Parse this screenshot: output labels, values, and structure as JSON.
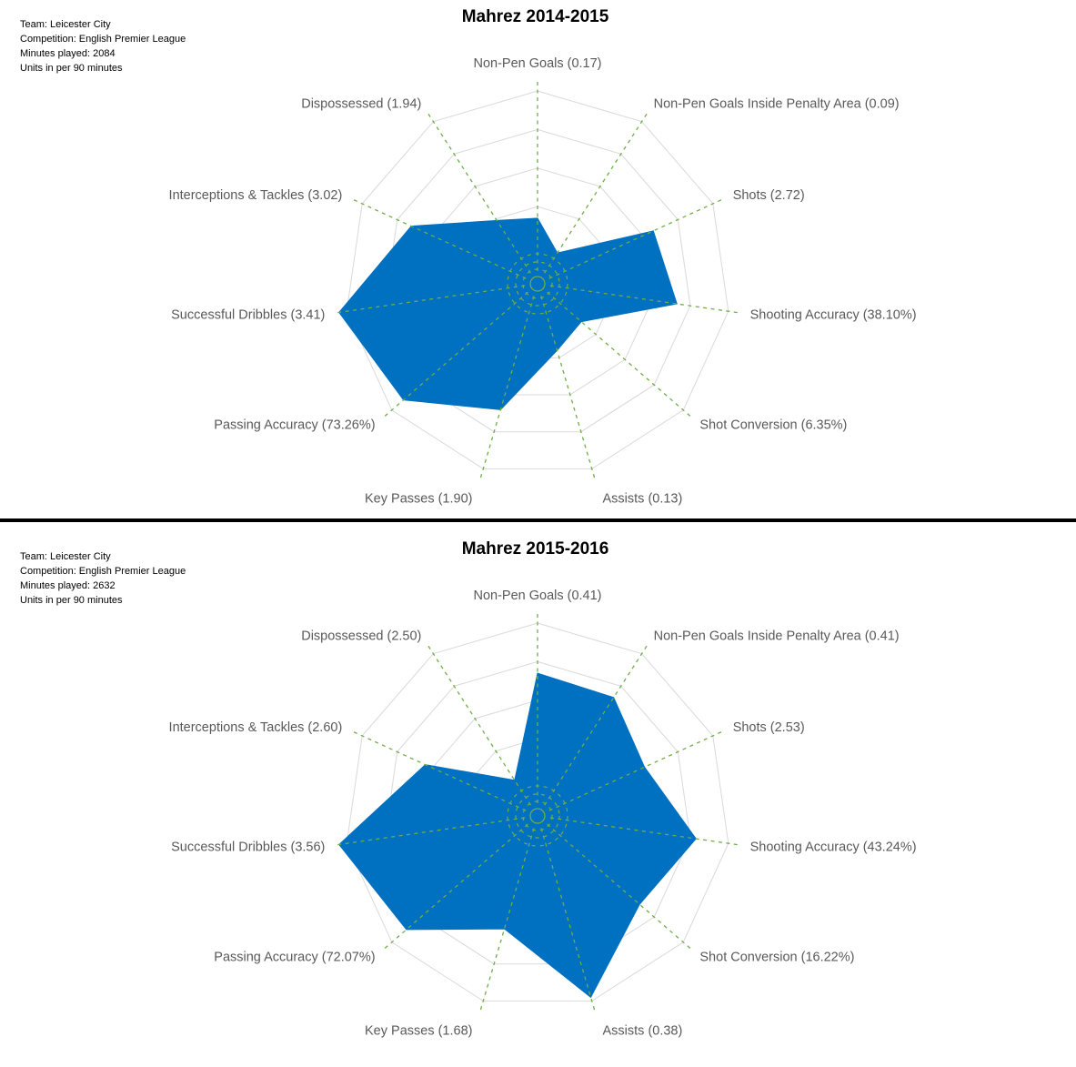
{
  "charts": [
    {
      "title": "Mahrez 2014-2015",
      "info": {
        "team": "Team: Leicester City",
        "competition": "Competition: English Premier League",
        "minutes": "Minutes played: 2084",
        "units": "Units in per 90 minutes"
      }
    },
    {
      "title": "Mahrez 2015-2016",
      "info": {
        "team": "Team: Leicester City",
        "competition": "Competition: English Premier League",
        "minutes": "Minutes played: 2632",
        "units": "Units in per 90 minutes"
      }
    }
  ],
  "colors": {
    "fill": "#0070C0",
    "grid": "#D9D9D9",
    "axis": "#70AD47",
    "label": "#595959"
  },
  "chart_data": [
    {
      "type": "radar",
      "title": "Mahrez 2014-2015",
      "categories": [
        "Non-Pen Goals",
        "Non-Pen Goals Inside Penalty Area",
        "Shots",
        "Shooting Accuracy",
        "Shot Conversion",
        "Assists",
        "Key Passes",
        "Passing Accuracy",
        "Successful Dribbles",
        "Interceptions & Tackles",
        "Dispossessed"
      ],
      "labels": [
        "Non-Pen Goals (0.17)",
        "Non-Pen Goals Inside Penalty Area (0.09)",
        "Shots (2.72)",
        "Shooting Accuracy (38.10%)",
        "Shot Conversion (6.35%)",
        "Assists (0.13)",
        "Key Passes (1.90)",
        "Passing Accuracy (73.26%)",
        "Successful Dribbles (3.41)",
        "Interceptions & Tackles (3.02)",
        "Dispossessed (1.94)"
      ],
      "raw_values": [
        0.17,
        0.09,
        2.72,
        38.1,
        6.35,
        0.13,
        1.9,
        73.26,
        3.41,
        3.02,
        1.94
      ],
      "normalized_values": [
        0.34,
        0.19,
        0.66,
        0.73,
        0.3,
        0.36,
        0.68,
        0.92,
        1.04,
        0.72,
        0.39
      ],
      "rings": 5,
      "grid": true,
      "legend": "none"
    },
    {
      "type": "radar",
      "title": "Mahrez 2015-2016",
      "categories": [
        "Non-Pen Goals",
        "Non-Pen Goals Inside Penalty Area",
        "Shots",
        "Shooting Accuracy",
        "Shot Conversion",
        "Assists",
        "Key Passes",
        "Passing Accuracy",
        "Successful Dribbles",
        "Interceptions & Tackles",
        "Dispossessed"
      ],
      "labels": [
        "Non-Pen Goals (0.41)",
        "Non-Pen Goals Inside Penalty Area (0.41)",
        "Shots (2.53)",
        "Shooting Accuracy (43.24%)",
        "Shot Conversion (16.22%)",
        "Assists (0.38)",
        "Key Passes (1.68)",
        "Passing Accuracy (72.07%)",
        "Successful Dribbles (3.56)",
        "Interceptions & Tackles (2.60)",
        "Dispossessed (2.50)"
      ],
      "raw_values": [
        0.41,
        0.41,
        2.53,
        43.24,
        16.22,
        0.38,
        1.68,
        72.07,
        3.56,
        2.6,
        2.5
      ],
      "normalized_values": [
        0.74,
        0.73,
        0.61,
        0.83,
        0.7,
        0.98,
        0.61,
        0.9,
        1.04,
        0.64,
        0.22
      ],
      "rings": 5,
      "grid": true,
      "legend": "none"
    }
  ]
}
